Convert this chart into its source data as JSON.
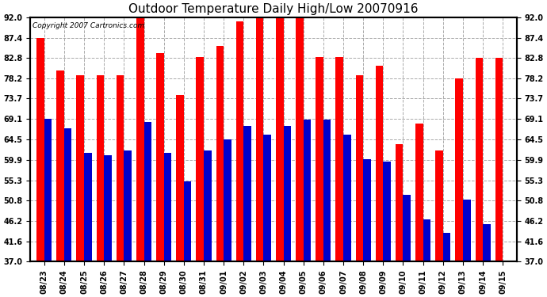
{
  "title": "Outdoor Temperature Daily High/Low 20070916",
  "copyright_text": "Copyright 2007 Cartronics.com",
  "dates": [
    "08/23",
    "08/24",
    "08/25",
    "08/26",
    "08/27",
    "08/28",
    "08/29",
    "08/30",
    "08/31",
    "09/01",
    "09/02",
    "09/03",
    "09/04",
    "09/05",
    "09/06",
    "09/07",
    "09/08",
    "09/09",
    "09/10",
    "09/11",
    "09/12",
    "09/13",
    "09/14",
    "09/15"
  ],
  "highs": [
    87.4,
    80.0,
    79.0,
    79.0,
    79.0,
    93.0,
    84.0,
    74.5,
    83.0,
    85.5,
    91.0,
    92.0,
    92.0,
    93.0,
    83.0,
    83.0,
    79.0,
    81.0,
    63.5,
    68.0,
    62.0,
    78.2,
    82.8,
    82.8
  ],
  "lows": [
    69.1,
    67.0,
    61.5,
    61.0,
    62.0,
    68.5,
    61.5,
    55.0,
    62.0,
    64.5,
    67.5,
    65.5,
    67.5,
    69.0,
    69.0,
    65.5,
    60.0,
    59.5,
    52.0,
    46.5,
    43.5,
    51.0,
    45.5,
    37.0
  ],
  "high_color": "#ff0000",
  "low_color": "#0000cc",
  "bg_color": "#ffffff",
  "grid_color": "#aaaaaa",
  "yticks": [
    37.0,
    41.6,
    46.2,
    50.8,
    55.3,
    59.9,
    64.5,
    69.1,
    73.7,
    78.2,
    82.8,
    87.4,
    92.0
  ],
  "ymin": 37.0,
  "ymax": 92.0,
  "bar_width": 0.38,
  "title_fontsize": 11,
  "tick_fontsize": 7.0,
  "copyright_fontsize": 6.5
}
